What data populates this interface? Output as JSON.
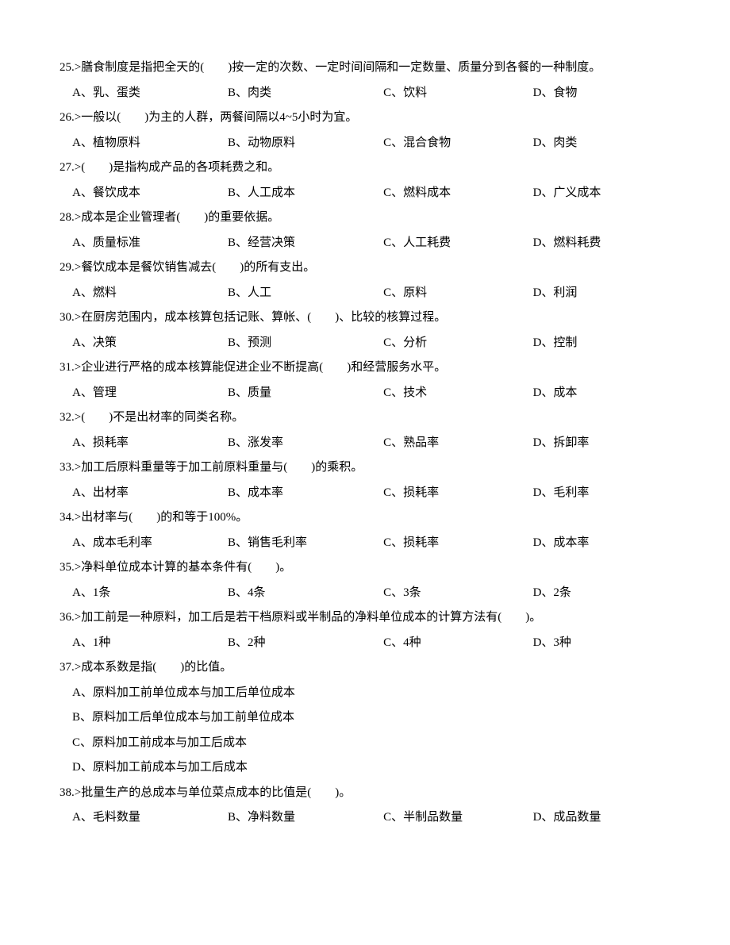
{
  "questions": [
    {
      "num": "25",
      "text": ">膳食制度是指把全天的(　　)按一定的次数、一定时间间隔和一定数量、质量分到各餐的一种制度。",
      "options": [
        "A、乳、蛋类",
        "B、肉类",
        "C、饮料",
        "D、食物"
      ],
      "layout": "cols-4"
    },
    {
      "num": "26",
      "text": ">一般以(　　)为主的人群，两餐间隔以4~5小时为宜。",
      "options": [
        "A、植物原料",
        "B、动物原料",
        "C、混合食物",
        "D、肉类"
      ],
      "layout": "cols-4"
    },
    {
      "num": "27",
      "text": ">(　　)是指构成产品的各项耗费之和。",
      "options": [
        "A、餐饮成本",
        "B、人工成本",
        "C、燃料成本",
        "D、广义成本"
      ],
      "layout": "cols-4"
    },
    {
      "num": "28",
      "text": ">成本是企业管理者(　　)的重要依据。",
      "options": [
        "A、质量标准",
        "B、经营决策",
        "C、人工耗费",
        "D、燃料耗费"
      ],
      "layout": "cols-4"
    },
    {
      "num": "29",
      "text": ">餐饮成本是餐饮销售减去(　　)的所有支出。",
      "options": [
        "A、燃料",
        "B、人工",
        "C、原料",
        "D、利润"
      ],
      "layout": "cols-4"
    },
    {
      "num": "30",
      "text": ">在厨房范围内，成本核算包括记账、算帐、(　　)、比较的核算过程。",
      "options": [
        "A、决策",
        "B、预测",
        "C、分析",
        "D、控制"
      ],
      "layout": "cols-4"
    },
    {
      "num": "31",
      "text": ">企业进行严格的成本核算能促进企业不断提高(　　)和经营服务水平。",
      "options": [
        "A、管理",
        "B、质量",
        "C、技术",
        "D、成本"
      ],
      "layout": "cols-4"
    },
    {
      "num": "32",
      "text": ">(　　)不是出材率的同类名称。",
      "options": [
        "A、损耗率",
        "B、涨发率",
        "C、熟品率",
        "D、拆卸率"
      ],
      "layout": "cols-4"
    },
    {
      "num": "33",
      "text": ">加工后原料重量等于加工前原料重量与(　　)的乘积。",
      "options": [
        "A、出材率",
        "B、成本率",
        "C、损耗率",
        "D、毛利率"
      ],
      "layout": "cols-4"
    },
    {
      "num": "34",
      "text": ">出材率与(　　)的和等于100%。",
      "options": [
        "A、成本毛利率",
        "B、销售毛利率",
        "C、损耗率",
        "D、成本率"
      ],
      "layout": "cols-4"
    },
    {
      "num": "35",
      "text": ">净料单位成本计算的基本条件有(　　)。",
      "options": [
        "A、1条",
        "B、4条",
        "C、3条",
        "D、2条"
      ],
      "layout": "cols-4"
    },
    {
      "num": "36",
      "text": ">加工前是一种原料，加工后是若干档原料或半制品的净料单位成本的计算方法有(　　)。",
      "options": [
        "A、1种",
        "B、2种",
        "C、4种",
        "D、3种"
      ],
      "layout": "cols-4"
    },
    {
      "num": "37",
      "text": ">成本系数是指(　　)的比值。",
      "options": [
        "A、原料加工前单位成本与加工后单位成本",
        "B、原料加工后单位成本与加工前单位成本",
        "C、原料加工前成本与加工后成本",
        "D、原料加工前成本与加工后成本"
      ],
      "layout": "vertical"
    },
    {
      "num": "38",
      "text": ">批量生产的总成本与单位菜点成本的比值是(　　)。",
      "options": [
        "A、毛料数量",
        "B、净料数量",
        "C、半制品数量",
        "D、成品数量"
      ],
      "layout": "cols-4"
    }
  ]
}
